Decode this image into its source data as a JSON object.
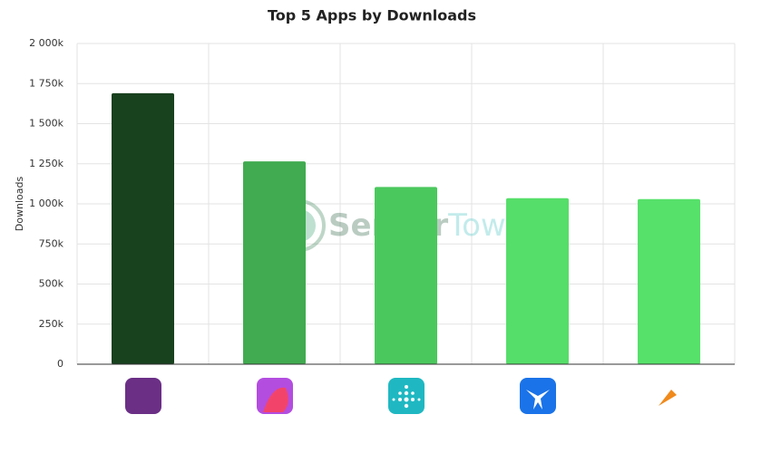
{
  "chart_data": {
    "type": "bar",
    "title": "Top 5 Apps by Downloads",
    "y_label": "Downloads",
    "categories": [
      null,
      null,
      null,
      null,
      null
    ],
    "values": [
      1690000,
      1265000,
      1105000,
      1035000,
      1030000
    ],
    "colors": [
      "#18411e",
      "#40ab50",
      "#4bc85d",
      "#55de69",
      "#56e16a"
    ],
    "ylim": [
      0,
      2000000
    ],
    "yticks": [
      0,
      {
        "value": 250000,
        "label": "250k"
      },
      {
        "value": 500000,
        "label": "500k"
      },
      {
        "value": 750000,
        "label": "750k"
      },
      {
        "value": 1000000,
        "label": "1 000k"
      },
      {
        "value": 1250000,
        "label": "1 250k"
      },
      {
        "value": 1500000,
        "label": "1 500k"
      },
      {
        "value": 1750000,
        "label": "1 750k"
      },
      {
        "value": 2000000,
        "label": "2 000k"
      }
    ],
    "grid": true,
    "watermark": [
      "Sensor",
      "Tower"
    ]
  }
}
